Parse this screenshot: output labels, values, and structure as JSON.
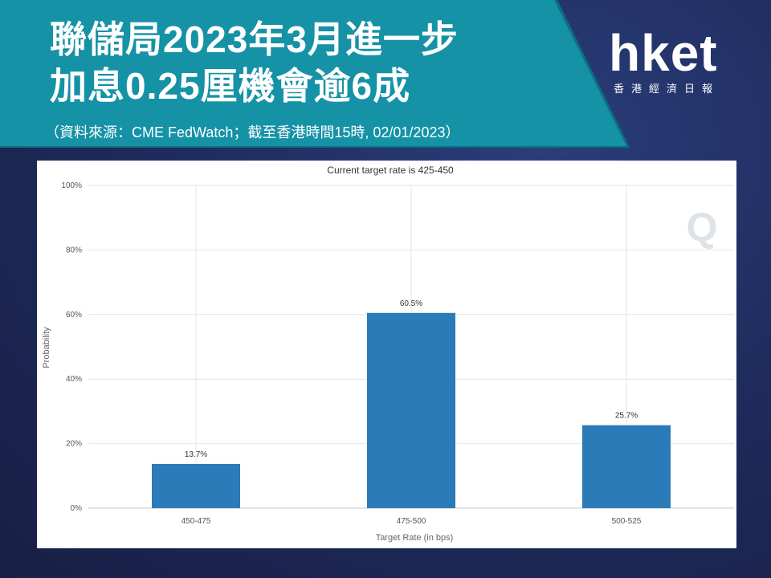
{
  "header": {
    "headline_line1": "聯儲局2023年3月進一步",
    "headline_line2": "加息0.25厘機會逾6成",
    "source": "（資料來源：CME FedWatch；截至香港時間15時, 02/01/2023）"
  },
  "logo": {
    "word": "hket",
    "subtitle": "香港經濟日報"
  },
  "watermark": {
    "letter": "Q"
  },
  "colors": {
    "bar": "#2b7bb9",
    "grid": "#e4e4e4",
    "band": "#1592a6"
  },
  "chart_data": {
    "type": "bar",
    "title": "Current target rate is 425-450",
    "xlabel": "Target Rate (in bps)",
    "ylabel": "Probability",
    "categories": [
      "450-475",
      "475-500",
      "500-525"
    ],
    "values": [
      13.7,
      60.5,
      25.7
    ],
    "value_labels": [
      "13.7%",
      "60.5%",
      "25.7%"
    ],
    "ylim": [
      0,
      100
    ],
    "yticks": [
      0,
      20,
      40,
      60,
      80,
      100
    ],
    "ytick_labels": [
      "0%",
      "20%",
      "40%",
      "60%",
      "80%",
      "100%"
    ],
    "grid": true,
    "legend": "none"
  }
}
